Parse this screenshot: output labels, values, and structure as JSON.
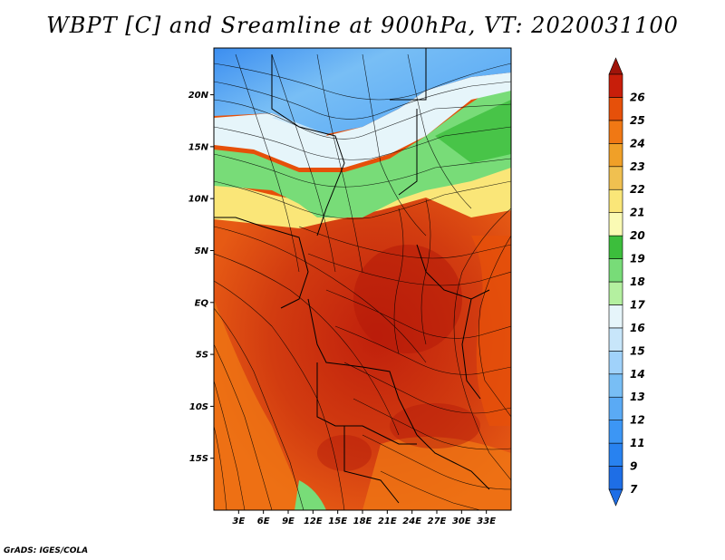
{
  "title": "WBPT [C] and Sreamline at 900hPa, VT: 2020031100",
  "credit": "GrADS: IGES/COLA",
  "map": {
    "lon_range": [
      0,
      36
    ],
    "lat_range": [
      -20,
      24.5
    ],
    "lat_ticks": [
      {
        "value": 20,
        "label": "20N"
      },
      {
        "value": 15,
        "label": "15N"
      },
      {
        "value": 10,
        "label": "10N"
      },
      {
        "value": 5,
        "label": "5N"
      },
      {
        "value": 0,
        "label": "EQ"
      },
      {
        "value": -5,
        "label": "5S"
      },
      {
        "value": -10,
        "label": "10S"
      },
      {
        "value": -15,
        "label": "15S"
      }
    ],
    "lon_ticks": [
      {
        "value": 3,
        "label": "3E"
      },
      {
        "value": 6,
        "label": "6E"
      },
      {
        "value": 9,
        "label": "9E"
      },
      {
        "value": 12,
        "label": "12E"
      },
      {
        "value": 15,
        "label": "15E"
      },
      {
        "value": 18,
        "label": "18E"
      },
      {
        "value": 21,
        "label": "21E"
      },
      {
        "value": 24,
        "label": "24E"
      },
      {
        "value": 27,
        "label": "27E"
      },
      {
        "value": 30,
        "label": "30E"
      },
      {
        "value": 33,
        "label": "33E"
      }
    ]
  },
  "colorbar": {
    "levels": [
      {
        "label": "7",
        "color": "#1e6ee6"
      },
      {
        "label": "9",
        "color": "#2882f0"
      },
      {
        "label": "11",
        "color": "#3c96f5"
      },
      {
        "label": "12",
        "color": "#5aaaf5"
      },
      {
        "label": "13",
        "color": "#78bef5"
      },
      {
        "label": "14",
        "color": "#a0d2fa"
      },
      {
        "label": "15",
        "color": "#c8e6fa"
      },
      {
        "label": "16",
        "color": "#e6f5fa"
      },
      {
        "label": "17",
        "color": "#b4f0a0"
      },
      {
        "label": "18",
        "color": "#78dc78"
      },
      {
        "label": "19",
        "color": "#3cbe3c"
      },
      {
        "label": "20",
        "color": "#fafab4"
      },
      {
        "label": "21",
        "color": "#fae678"
      },
      {
        "label": "22",
        "color": "#f0c050"
      },
      {
        "label": "23",
        "color": "#f0a028"
      },
      {
        "label": "24",
        "color": "#f07814"
      },
      {
        "label": "25",
        "color": "#e6500a"
      },
      {
        "label": "26",
        "color": "#c81e0a"
      }
    ],
    "top_color": "#a0140a"
  }
}
